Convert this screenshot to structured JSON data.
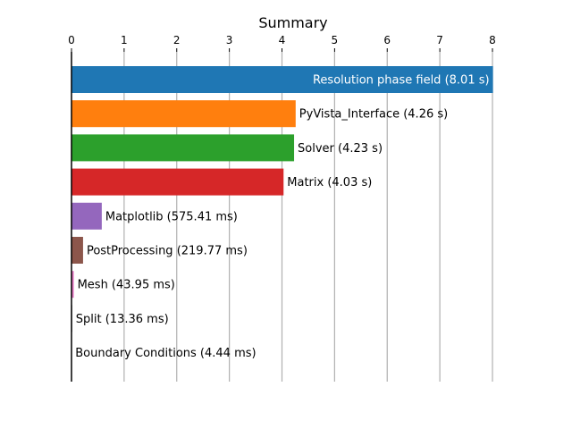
{
  "chart_data": {
    "type": "bar",
    "orientation": "horizontal",
    "title": "Summary",
    "xlabel": "",
    "ylabel": "",
    "xlim": [
      0,
      8
    ],
    "x_ticks": [
      "0",
      "1",
      "2",
      "3",
      "4",
      "5",
      "6",
      "7",
      "8"
    ],
    "x_tick_position": "top",
    "grid": "vertical",
    "legend": "none",
    "bars": [
      {
        "name": "Resolution phase field",
        "value": 8.01,
        "label": "Resolution phase field (8.01 s)",
        "color": "#1f77b4",
        "label_inside": true
      },
      {
        "name": "PyVista_Interface",
        "value": 4.26,
        "label": "PyVista_Interface (4.26 s)",
        "color": "#ff7f0e",
        "label_inside": false
      },
      {
        "name": "Solver",
        "value": 4.23,
        "label": "Solver (4.23 s)",
        "color": "#2ca02c",
        "label_inside": false
      },
      {
        "name": "Matrix",
        "value": 4.03,
        "label": "Matrix (4.03 s)",
        "color": "#d62728",
        "label_inside": false
      },
      {
        "name": "Matplotlib",
        "value": 0.57541,
        "label": "Matplotlib (575.41 ms)",
        "color": "#9467bd",
        "label_inside": false
      },
      {
        "name": "PostProcessing",
        "value": 0.21977,
        "label": "PostProcessing (219.77 ms)",
        "color": "#8c564b",
        "label_inside": false
      },
      {
        "name": "Mesh",
        "value": 0.04395,
        "label": "Mesh (43.95 ms)",
        "color": "#e377c2",
        "label_inside": false
      },
      {
        "name": "Split",
        "value": 0.01336,
        "label": "Split (13.36 ms)",
        "color": "#7f7f7f",
        "label_inside": false
      },
      {
        "name": "Boundary Conditions",
        "value": 0.00444,
        "label": "Boundary Conditions (4.44 ms)",
        "color": "#bcbd22",
        "label_inside": false
      }
    ]
  }
}
